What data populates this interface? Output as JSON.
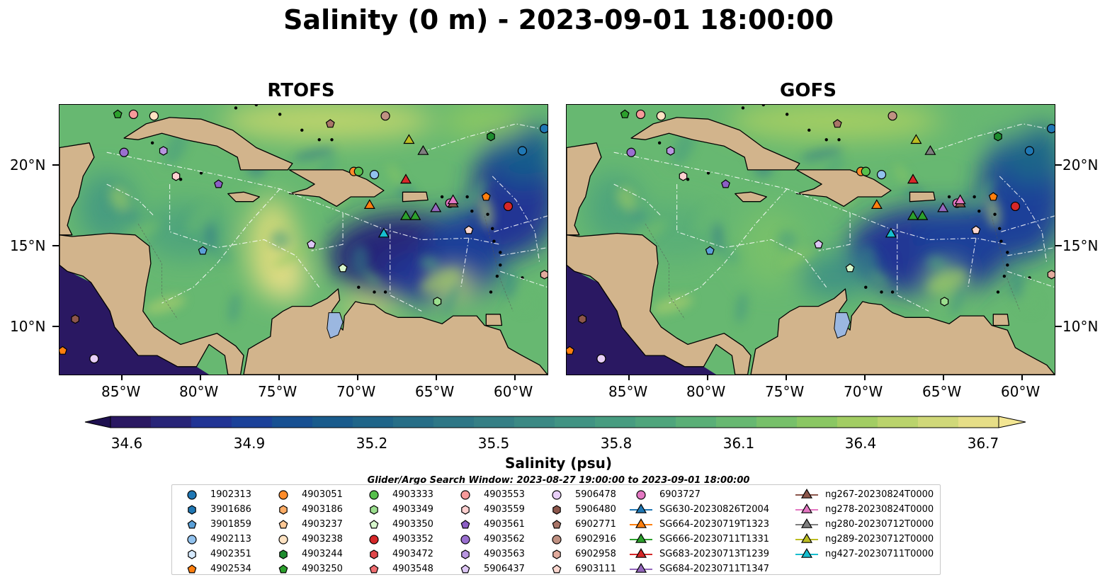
{
  "title": "Salinity (0 m) - 2023-09-01 18:00:00",
  "panels": [
    {
      "title": "RTOFS"
    },
    {
      "title": "GOFS"
    }
  ],
  "axes": {
    "lon_ticks": [
      "85°W",
      "80°W",
      "75°W",
      "70°W",
      "65°W",
      "60°W"
    ],
    "lat_ticks_left": [
      "20°N",
      "15°N",
      "10°N"
    ],
    "lat_ticks_right": [
      "20°N",
      "15°N",
      "10°N"
    ],
    "lon_range": [
      -89,
      -58
    ],
    "lat_range": [
      7,
      24
    ]
  },
  "colorbar": {
    "label": "Salinity (psu)",
    "ticks": [
      "34.6",
      "34.9",
      "35.2",
      "35.5",
      "35.8",
      "36.1",
      "36.4",
      "36.7"
    ],
    "range": [
      34.6,
      36.7
    ],
    "extend": "both",
    "colormap": "haline",
    "colors": [
      "#2a1862",
      "#282578",
      "#213494",
      "#1b4199",
      "#175092",
      "#195b8c",
      "#1f6589",
      "#276e87",
      "#2e7786",
      "#357f85",
      "#3b8984",
      "#419383",
      "#479c80",
      "#4fa57c",
      "#5aaf77",
      "#67b871",
      "#77c06a",
      "#8ac763",
      "#a2cd63",
      "#bad36c",
      "#d0d879",
      "#e6de87"
    ]
  },
  "search_window": "Glider/Argo Search Window: 2023-08-27 19:00:00 to 2023-09-01 18:00:00",
  "colors": {
    "land": "#d2b48c",
    "lakes": "#9bb7e0"
  },
  "legend": {
    "columns": [
      [
        {
          "label": "1902313",
          "marker": "circle",
          "color": "#1f77b4"
        },
        {
          "label": "3901686",
          "marker": "hexagon",
          "color": "#1f77b4"
        },
        {
          "label": "3901859",
          "marker": "pentagon",
          "color": "#5aa0d8"
        },
        {
          "label": "4902113",
          "marker": "circle",
          "color": "#92c2ee"
        },
        {
          "label": "4902351",
          "marker": "hexagon",
          "color": "#d6eaff"
        },
        {
          "label": "4902534",
          "marker": "pentagon",
          "color": "#ff7f0e"
        }
      ],
      [
        {
          "label": "4903051",
          "marker": "circle",
          "color": "#ff8c2b"
        },
        {
          "label": "4903186",
          "marker": "hexagon",
          "color": "#ffad66"
        },
        {
          "label": "4903237",
          "marker": "pentagon",
          "color": "#ffc895"
        },
        {
          "label": "4903238",
          "marker": "circle",
          "color": "#ffe3c3"
        },
        {
          "label": "4903244",
          "marker": "hexagon",
          "color": "#1e8c2e"
        },
        {
          "label": "4903250",
          "marker": "pentagon",
          "color": "#2ca02c"
        }
      ],
      [
        {
          "label": "4903333",
          "marker": "circle",
          "color": "#57c04c"
        },
        {
          "label": "4903349",
          "marker": "hexagon",
          "color": "#9bde8e"
        },
        {
          "label": "4903350",
          "marker": "pentagon",
          "color": "#d7f7cc"
        },
        {
          "label": "4903352",
          "marker": "circle",
          "color": "#d62728"
        },
        {
          "label": "4903472",
          "marker": "hexagon",
          "color": "#e0474a"
        },
        {
          "label": "4903548",
          "marker": "pentagon",
          "color": "#f06d70"
        }
      ],
      [
        {
          "label": "4903553",
          "marker": "circle",
          "color": "#f79a9a"
        },
        {
          "label": "4903559",
          "marker": "hexagon",
          "color": "#ffd0d0"
        },
        {
          "label": "4903561",
          "marker": "pentagon",
          "color": "#8c5ec5"
        },
        {
          "label": "4903562",
          "marker": "circle",
          "color": "#9a6fd0"
        },
        {
          "label": "4903563",
          "marker": "hexagon",
          "color": "#b895e0"
        },
        {
          "label": "5906437",
          "marker": "pentagon",
          "color": "#ddc6f5"
        }
      ],
      [
        {
          "label": "5906478",
          "marker": "circle",
          "color": "#e8cff8"
        },
        {
          "label": "5906480",
          "marker": "hexagon",
          "color": "#8c564b"
        },
        {
          "label": "6902771",
          "marker": "pentagon",
          "color": "#a97568"
        },
        {
          "label": "6902916",
          "marker": "circle",
          "color": "#c09182"
        },
        {
          "label": "6902958",
          "marker": "hexagon",
          "color": "#e2ab9d"
        },
        {
          "label": "6903111",
          "marker": "pentagon",
          "color": "#fbd7cf"
        }
      ],
      [
        {
          "label": "6903727",
          "marker": "circle",
          "color": "#e377c2"
        },
        {
          "label": "SG630-20230826T2004",
          "marker": "triangle-line",
          "color": "#1f77b4"
        },
        {
          "label": "SG664-20230719T1323",
          "marker": "triangle-line",
          "color": "#ff7f0e"
        },
        {
          "label": "SG666-20230711T1331",
          "marker": "triangle-line",
          "color": "#2ca02c"
        },
        {
          "label": "SG683-20230713T1239",
          "marker": "triangle-line",
          "color": "#d62728"
        },
        {
          "label": "SG684-20230711T1347",
          "marker": "triangle-line",
          "color": "#9467bd"
        }
      ],
      [
        {
          "label": "ng267-20230824T0000",
          "marker": "triangle-line",
          "color": "#8c564b"
        },
        {
          "label": "ng278-20230824T0000",
          "marker": "triangle-line",
          "color": "#e377c2"
        },
        {
          "label": "ng280-20230712T0000",
          "marker": "triangle-line",
          "color": "#7f7f7f"
        },
        {
          "label": "ng289-20230712T0000",
          "marker": "triangle-line",
          "color": "#bcbd22"
        },
        {
          "label": "ng427-20230711T0000",
          "marker": "triangle-line",
          "color": "#17becf"
        }
      ]
    ]
  },
  "observations": [
    {
      "lon": -58.2,
      "lat": 22.5,
      "marker": "circle",
      "color": "#1f77b4"
    },
    {
      "lon": -59.6,
      "lat": 21.1,
      "marker": "circle",
      "color": "#1f77b4"
    },
    {
      "lon": -79.9,
      "lat": 14.8,
      "marker": "pentagon",
      "color": "#5aa0d8"
    },
    {
      "lon": -69.0,
      "lat": 19.6,
      "marker": "circle",
      "color": "#92c2ee"
    },
    {
      "lon": -61.9,
      "lat": 18.2,
      "marker": "pentagon",
      "color": "#ff7f0e"
    },
    {
      "lon": -70.3,
      "lat": 19.8,
      "marker": "circle",
      "color": "#ff8c2b"
    },
    {
      "lon": -88.8,
      "lat": 8.5,
      "marker": "pentagon",
      "color": "#ff7f0e"
    },
    {
      "lon": -83.0,
      "lat": 23.3,
      "marker": "circle",
      "color": "#ffe3c3"
    },
    {
      "lon": -85.3,
      "lat": 23.4,
      "marker": "pentagon",
      "color": "#2ca02c"
    },
    {
      "lon": -61.6,
      "lat": 22.0,
      "marker": "hexagon",
      "color": "#1e8c2e"
    },
    {
      "lon": -70.0,
      "lat": 19.8,
      "marker": "circle",
      "color": "#57c04c"
    },
    {
      "lon": -71.0,
      "lat": 13.7,
      "marker": "pentagon",
      "color": "#d7f7cc"
    },
    {
      "lon": -65.0,
      "lat": 11.6,
      "marker": "hexagon",
      "color": "#9bde8e"
    },
    {
      "lon": -60.5,
      "lat": 17.6,
      "marker": "circle",
      "color": "#d62728"
    },
    {
      "lon": -84.3,
      "lat": 23.4,
      "marker": "circle",
      "color": "#f79a9a"
    },
    {
      "lon": -68.3,
      "lat": 23.3,
      "marker": "circle",
      "color": "#c09182"
    },
    {
      "lon": -81.6,
      "lat": 19.5,
      "marker": "hexagon",
      "color": "#ffd0d0"
    },
    {
      "lon": -63.0,
      "lat": 16.1,
      "marker": "pentagon",
      "color": "#fbd7cf"
    },
    {
      "lon": -58.2,
      "lat": 13.3,
      "marker": "hexagon",
      "color": "#e2ab9d"
    },
    {
      "lon": -78.9,
      "lat": 19.0,
      "marker": "pentagon",
      "color": "#8c5ec5"
    },
    {
      "lon": -84.9,
      "lat": 21.0,
      "marker": "circle",
      "color": "#9a6fd0"
    },
    {
      "lon": -82.4,
      "lat": 21.1,
      "marker": "hexagon",
      "color": "#b895e0"
    },
    {
      "lon": -73.0,
      "lat": 15.2,
      "marker": "pentagon",
      "color": "#ddc6f5"
    },
    {
      "lon": -86.8,
      "lat": 8.0,
      "marker": "circle",
      "color": "#e8cff8"
    },
    {
      "lon": -88.0,
      "lat": 10.5,
      "marker": "hexagon",
      "color": "#8c564b"
    },
    {
      "lon": -71.8,
      "lat": 22.8,
      "marker": "pentagon",
      "color": "#a97568"
    },
    {
      "lon": -64.2,
      "lat": 17.8,
      "marker": "circle",
      "color": "#e377c2"
    },
    {
      "lon": -69.3,
      "lat": 17.7,
      "marker": "triangle",
      "color": "#ff7f0e"
    },
    {
      "lon": -67.0,
      "lat": 17.0,
      "marker": "triangle",
      "color": "#2ca02c"
    },
    {
      "lon": -66.4,
      "lat": 17.0,
      "marker": "triangle",
      "color": "#2ca02c"
    },
    {
      "lon": -67.0,
      "lat": 19.3,
      "marker": "triangle",
      "color": "#d62728"
    },
    {
      "lon": -65.1,
      "lat": 17.5,
      "marker": "triangle",
      "color": "#9467bd"
    },
    {
      "lon": -64.0,
      "lat": 17.8,
      "marker": "triangle",
      "color": "#8c564b"
    },
    {
      "lon": -64.0,
      "lat": 18.0,
      "marker": "triangle",
      "color": "#e377c2"
    },
    {
      "lon": -65.9,
      "lat": 21.1,
      "marker": "triangle",
      "color": "#7f7f7f"
    },
    {
      "lon": -66.8,
      "lat": 21.8,
      "marker": "triangle",
      "color": "#bcbd22"
    },
    {
      "lon": -68.4,
      "lat": 15.9,
      "marker": "triangle",
      "color": "#17becf"
    }
  ]
}
